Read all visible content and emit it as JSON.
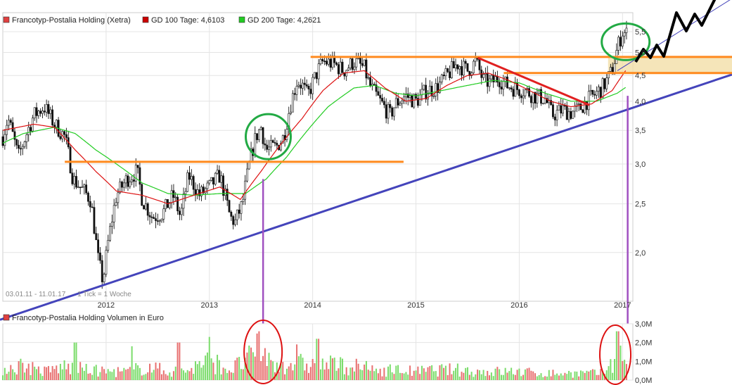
{
  "chart_data": [
    {
      "type": "candlestick",
      "legend": [
        {
          "label": "Francotyp-Postalia Holding (Xetra)",
          "color": "#e04040"
        },
        {
          "label": "GD 100 Tage: 4,6103",
          "color": "#cc0000"
        },
        {
          "label": "GD 200 Tage: 4,2621",
          "color": "#22cc22"
        }
      ],
      "x_ticks": [
        "2012",
        "2013",
        "2014",
        "2015",
        "2016",
        "2017"
      ],
      "y_ticks": [
        "2,0",
        "2,5",
        "3,0",
        "3,5",
        "4,0",
        "4,5",
        "5,0",
        "5,5"
      ],
      "y_tick_values": [
        2.0,
        2.5,
        3.0,
        3.5,
        4.0,
        4.5,
        5.0,
        5.5
      ],
      "ylim": [
        1.6,
        6.0
      ],
      "xlim": [
        2011.0,
        2017.1
      ],
      "date_range": "03.01.11 - 11.01.17",
      "tick_note": "1 Tick = 1 Woche",
      "grid": true,
      "price_anchors": [
        [
          2011.0,
          3.4
        ],
        [
          2011.05,
          3.7
        ],
        [
          2011.15,
          3.1
        ],
        [
          2011.3,
          3.75
        ],
        [
          2011.4,
          3.9
        ],
        [
          2011.5,
          3.6
        ],
        [
          2011.6,
          3.4
        ],
        [
          2011.68,
          2.8
        ],
        [
          2011.75,
          2.7
        ],
        [
          2011.85,
          2.55
        ],
        [
          2011.92,
          1.95
        ],
        [
          2011.97,
          1.75
        ],
        [
          2012.02,
          2.1
        ],
        [
          2012.1,
          2.6
        ],
        [
          2012.2,
          2.8
        ],
        [
          2012.3,
          2.9
        ],
        [
          2012.35,
          2.55
        ],
        [
          2012.45,
          2.35
        ],
        [
          2012.55,
          2.4
        ],
        [
          2012.65,
          2.6
        ],
        [
          2012.72,
          2.35
        ],
        [
          2012.8,
          2.85
        ],
        [
          2012.9,
          2.6
        ],
        [
          2013.0,
          2.7
        ],
        [
          2013.1,
          2.85
        ],
        [
          2013.2,
          2.35
        ],
        [
          2013.25,
          2.3
        ],
        [
          2013.32,
          2.5
        ],
        [
          2013.38,
          2.95
        ],
        [
          2013.45,
          3.4
        ],
        [
          2013.5,
          3.55
        ],
        [
          2013.55,
          3.2
        ],
        [
          2013.65,
          3.25
        ],
        [
          2013.72,
          3.4
        ],
        [
          2013.78,
          3.9
        ],
        [
          2013.85,
          4.4
        ],
        [
          2013.9,
          4.3
        ],
        [
          2013.95,
          4.1
        ],
        [
          2014.0,
          4.35
        ],
        [
          2014.05,
          4.6
        ],
        [
          2014.1,
          4.8
        ],
        [
          2014.2,
          4.75
        ],
        [
          2014.3,
          4.6
        ],
        [
          2014.4,
          4.8
        ],
        [
          2014.5,
          4.65
        ],
        [
          2014.55,
          4.3
        ],
        [
          2014.65,
          4.0
        ],
        [
          2014.75,
          3.75
        ],
        [
          2014.8,
          3.95
        ],
        [
          2014.9,
          4.1
        ],
        [
          2015.0,
          4.0
        ],
        [
          2015.1,
          4.2
        ],
        [
          2015.2,
          4.25
        ],
        [
          2015.3,
          4.5
        ],
        [
          2015.4,
          4.75
        ],
        [
          2015.5,
          4.6
        ],
        [
          2015.58,
          4.8
        ],
        [
          2015.65,
          4.4
        ],
        [
          2015.72,
          4.35
        ],
        [
          2015.8,
          4.45
        ],
        [
          2015.88,
          4.3
        ],
        [
          2015.95,
          4.25
        ],
        [
          2016.05,
          4.2
        ],
        [
          2016.15,
          4.1
        ],
        [
          2016.25,
          4.05
        ],
        [
          2016.32,
          3.75
        ],
        [
          2016.42,
          3.85
        ],
        [
          2016.5,
          3.8
        ],
        [
          2016.58,
          3.85
        ],
        [
          2016.65,
          4.0
        ],
        [
          2016.72,
          4.1
        ],
        [
          2016.8,
          4.25
        ],
        [
          2016.85,
          4.4
        ],
        [
          2016.9,
          4.6
        ],
        [
          2016.95,
          5.1
        ],
        [
          2017.0,
          5.5
        ],
        [
          2017.03,
          5.45
        ]
      ],
      "sma100_anchors": [
        [
          2011.0,
          3.5
        ],
        [
          2011.3,
          3.6
        ],
        [
          2011.5,
          3.55
        ],
        [
          2011.7,
          3.2
        ],
        [
          2011.9,
          2.9
        ],
        [
          2012.1,
          2.65
        ],
        [
          2012.35,
          2.6
        ],
        [
          2012.6,
          2.5
        ],
        [
          2012.85,
          2.6
        ],
        [
          2013.1,
          2.7
        ],
        [
          2013.3,
          2.55
        ],
        [
          2013.5,
          2.9
        ],
        [
          2013.7,
          3.3
        ],
        [
          2013.9,
          3.7
        ],
        [
          2014.1,
          4.2
        ],
        [
          2014.3,
          4.55
        ],
        [
          2014.5,
          4.6
        ],
        [
          2014.7,
          4.25
        ],
        [
          2014.9,
          4.0
        ],
        [
          2015.1,
          4.05
        ],
        [
          2015.3,
          4.3
        ],
        [
          2015.5,
          4.5
        ],
        [
          2015.7,
          4.55
        ],
        [
          2015.9,
          4.4
        ],
        [
          2016.1,
          4.2
        ],
        [
          2016.3,
          4.0
        ],
        [
          2016.5,
          3.9
        ],
        [
          2016.7,
          3.95
        ],
        [
          2016.9,
          4.2
        ],
        [
          2017.03,
          4.6
        ]
      ],
      "sma200_anchors": [
        [
          2011.0,
          3.3
        ],
        [
          2011.2,
          3.45
        ],
        [
          2011.5,
          3.55
        ],
        [
          2011.7,
          3.45
        ],
        [
          2011.9,
          3.2
        ],
        [
          2012.1,
          3.0
        ],
        [
          2012.35,
          2.75
        ],
        [
          2012.6,
          2.62
        ],
        [
          2012.85,
          2.6
        ],
        [
          2013.1,
          2.62
        ],
        [
          2013.35,
          2.62
        ],
        [
          2013.55,
          2.8
        ],
        [
          2013.75,
          3.1
        ],
        [
          2013.95,
          3.5
        ],
        [
          2014.15,
          3.9
        ],
        [
          2014.4,
          4.25
        ],
        [
          2014.6,
          4.3
        ],
        [
          2014.8,
          4.15
        ],
        [
          2015.0,
          4.1
        ],
        [
          2015.25,
          4.2
        ],
        [
          2015.5,
          4.3
        ],
        [
          2015.75,
          4.4
        ],
        [
          2016.0,
          4.35
        ],
        [
          2016.25,
          4.15
        ],
        [
          2016.5,
          4.0
        ],
        [
          2016.75,
          4.0
        ],
        [
          2016.95,
          4.15
        ],
        [
          2017.03,
          4.26
        ]
      ]
    },
    {
      "type": "bar",
      "legend": [
        {
          "label": "Francotyp-Postalia Holding Volumen in Euro",
          "color": "#e04040"
        }
      ],
      "y_ticks": [
        "0,0M",
        "1,0M",
        "2,0M",
        "3,0M"
      ],
      "y_tick_values": [
        0,
        1.0,
        2.0,
        3.0
      ],
      "ylim": [
        0,
        3.0
      ],
      "unit": "Mio. EUR",
      "volume_anchors": [
        [
          2011.0,
          0.7
        ],
        [
          2011.2,
          0.9
        ],
        [
          2011.4,
          0.5
        ],
        [
          2011.6,
          0.8
        ],
        [
          2011.8,
          0.6
        ],
        [
          2012.0,
          0.5
        ],
        [
          2012.2,
          0.5
        ],
        [
          2012.4,
          0.8
        ],
        [
          2012.6,
          0.5
        ],
        [
          2012.8,
          0.6
        ],
        [
          2013.0,
          1.2
        ],
        [
          2013.2,
          0.6
        ],
        [
          2013.4,
          1.3
        ],
        [
          2013.5,
          1.9
        ],
        [
          2013.6,
          0.9
        ],
        [
          2013.8,
          1.0
        ],
        [
          2014.0,
          0.9
        ],
        [
          2014.2,
          0.9
        ],
        [
          2014.4,
          0.8
        ],
        [
          2014.6,
          0.6
        ],
        [
          2014.8,
          0.6
        ],
        [
          2015.0,
          0.5
        ],
        [
          2015.2,
          0.6
        ],
        [
          2015.4,
          0.6
        ],
        [
          2015.6,
          0.5
        ],
        [
          2015.8,
          0.5
        ],
        [
          2016.0,
          0.5
        ],
        [
          2016.2,
          0.4
        ],
        [
          2016.4,
          0.4
        ],
        [
          2016.6,
          0.4
        ],
        [
          2016.8,
          0.4
        ],
        [
          2016.95,
          1.4
        ],
        [
          2017.03,
          1.5
        ]
      ],
      "volume_spikes": [
        [
          2011.7,
          2.0
        ],
        [
          2012.25,
          1.8
        ],
        [
          2012.7,
          2.0
        ],
        [
          2013.0,
          2.3
        ],
        [
          2013.48,
          2.6
        ],
        [
          2013.85,
          1.9
        ],
        [
          2014.05,
          2.2
        ],
        [
          2016.95,
          2.6
        ]
      ]
    }
  ],
  "annotations": {
    "trendline_color": "#4444bb",
    "resistance_color": "#ff8a1e",
    "downtrend_color": "#e02020",
    "circle_color": "#22aa44",
    "volume_circle_color": "#dd1111",
    "marker_color": "#a050c0",
    "zone_color": "#f3dfa8",
    "forecast_color": "#000000"
  }
}
